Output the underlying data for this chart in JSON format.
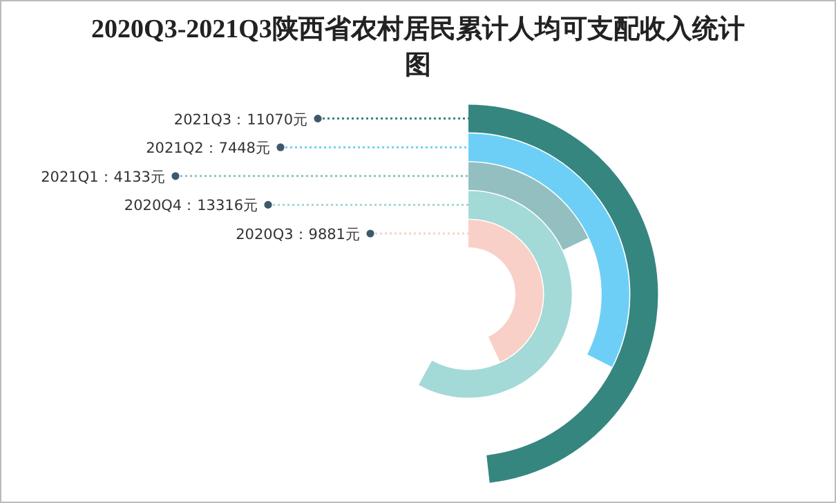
{
  "chart_data": {
    "type": "other",
    "title": "2020Q3-2021Q3陕西省农村居民累计人均可支配收入统计图",
    "categories": [
      "2020Q3",
      "2020Q4",
      "2021Q1",
      "2021Q2",
      "2021Q3"
    ],
    "values": [
      9881,
      13316,
      4133,
      7448,
      11070
    ],
    "colors": [
      "#f8d0c8",
      "#a3d9d6",
      "#93bfc1",
      "#6dcff6",
      "#35867f"
    ],
    "value_labels": [
      "：9881元",
      "：13316元",
      "：4133元",
      "：7448元",
      "：11070元"
    ]
  }
}
